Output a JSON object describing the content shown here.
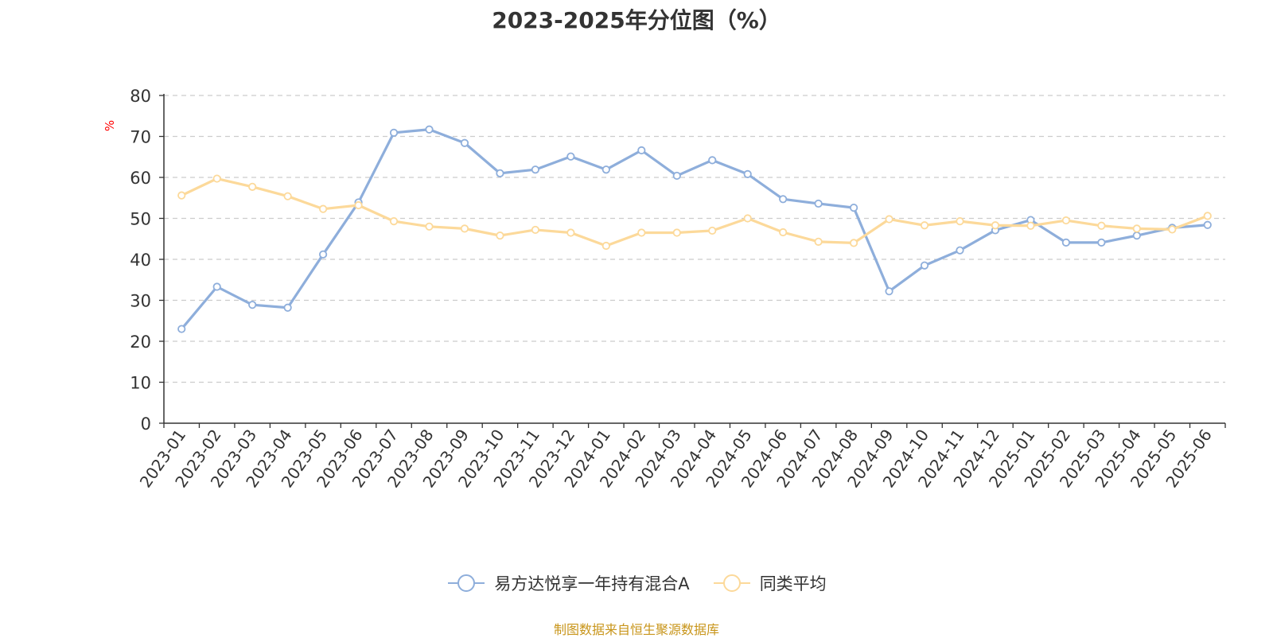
{
  "chart_data": {
    "type": "line",
    "title": "2023-2025年分位图（%）",
    "ylabel": "%",
    "ylim": [
      0,
      80
    ],
    "yticks": [
      0,
      10,
      20,
      30,
      40,
      50,
      60,
      70,
      80
    ],
    "grid": true,
    "legend_position": "bottom",
    "categories": [
      "2023-01",
      "2023-02",
      "2023-03",
      "2023-04",
      "2023-05",
      "2023-06",
      "2023-07",
      "2023-08",
      "2023-09",
      "2023-10",
      "2023-11",
      "2023-12",
      "2024-01",
      "2024-02",
      "2024-03",
      "2024-04",
      "2024-05",
      "2024-06",
      "2024-07",
      "2024-08",
      "2024-09",
      "2024-10",
      "2024-11",
      "2024-12",
      "2025-01",
      "2025-02",
      "2025-03",
      "2025-04",
      "2025-05",
      "2025-06"
    ],
    "series": [
      {
        "name": "易方达悦享一年持有混合A",
        "color": "#8eaedb",
        "values": [
          23,
          33.3,
          28.9,
          28.2,
          41.2,
          53.9,
          70.9,
          71.7,
          68.4,
          61,
          61.9,
          65.1,
          61.9,
          66.6,
          60.4,
          64.2,
          60.8,
          54.7,
          53.6,
          52.6,
          32.2,
          38.5,
          42.2,
          47.1,
          49.6,
          44.1,
          44.1,
          45.8,
          47.7,
          48.4
        ]
      },
      {
        "name": "同类平均",
        "color": "#fcd99a",
        "values": [
          55.6,
          59.7,
          57.7,
          55.4,
          52.3,
          53.2,
          49.3,
          48,
          47.5,
          45.8,
          47.2,
          46.5,
          43.3,
          46.5,
          46.5,
          47,
          50,
          46.6,
          44.3,
          44,
          49.8,
          48.3,
          49.3,
          48.3,
          48.2,
          49.5,
          48.2,
          47.5,
          47.3,
          50.6
        ]
      }
    ]
  },
  "source_note": "制图数据来自恒生聚源数据库"
}
